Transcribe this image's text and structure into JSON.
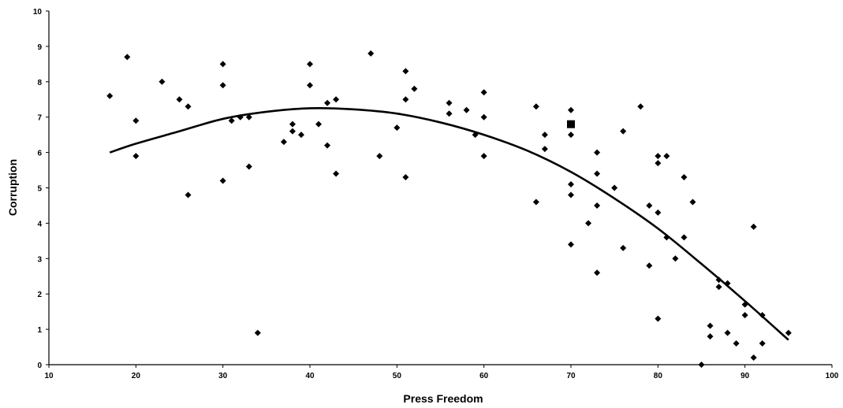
{
  "chart_data": {
    "type": "scatter",
    "title": "",
    "xlabel": "Press Freedom",
    "ylabel": "Corruption",
    "xlim": [
      10,
      100
    ],
    "ylim": [
      0,
      10
    ],
    "xticks": [
      10,
      20,
      30,
      40,
      50,
      60,
      70,
      80,
      90,
      100
    ],
    "yticks": [
      0,
      1,
      2,
      3,
      4,
      5,
      6,
      7,
      8,
      9,
      10
    ],
    "grid": false,
    "legend": "none",
    "colors": {
      "points": "#000000",
      "trend": "#000000",
      "axis": "#000000"
    },
    "series": [
      {
        "marker": "diamond",
        "points": [
          [
            17,
            7.6
          ],
          [
            19,
            8.7
          ],
          [
            20,
            6.9
          ],
          [
            20,
            5.9
          ],
          [
            23,
            8.0
          ],
          [
            25,
            7.5
          ],
          [
            26,
            7.3
          ],
          [
            26,
            4.8
          ],
          [
            30,
            8.5
          ],
          [
            30,
            7.9
          ],
          [
            30,
            5.2
          ],
          [
            31,
            6.9
          ],
          [
            32,
            7.0
          ],
          [
            33,
            7.0
          ],
          [
            33,
            5.6
          ],
          [
            34,
            0.9
          ],
          [
            37,
            6.3
          ],
          [
            38,
            6.8
          ],
          [
            38,
            6.6
          ],
          [
            39,
            6.5
          ],
          [
            40,
            8.5
          ],
          [
            40,
            7.9
          ],
          [
            41,
            6.8
          ],
          [
            42,
            7.4
          ],
          [
            42,
            6.2
          ],
          [
            43,
            7.5
          ],
          [
            43,
            5.4
          ],
          [
            47,
            8.8
          ],
          [
            48,
            5.9
          ],
          [
            50,
            6.7
          ],
          [
            51,
            8.3
          ],
          [
            51,
            7.5
          ],
          [
            51,
            5.3
          ],
          [
            52,
            7.8
          ],
          [
            56,
            7.4
          ],
          [
            56,
            7.1
          ],
          [
            58,
            7.2
          ],
          [
            59,
            6.5
          ],
          [
            60,
            7.7
          ],
          [
            60,
            7.0
          ],
          [
            60,
            5.9
          ],
          [
            66,
            7.3
          ],
          [
            66,
            4.6
          ],
          [
            67,
            6.5
          ],
          [
            67,
            6.1
          ],
          [
            70,
            7.2
          ],
          [
            70,
            6.5
          ],
          [
            70,
            5.1
          ],
          [
            70,
            4.8
          ],
          [
            70,
            3.4
          ],
          [
            72,
            4.0
          ],
          [
            73,
            6.0
          ],
          [
            73,
            5.4
          ],
          [
            73,
            4.5
          ],
          [
            73,
            2.6
          ],
          [
            75,
            5.0
          ],
          [
            76,
            6.6
          ],
          [
            76,
            3.3
          ],
          [
            78,
            7.3
          ],
          [
            79,
            4.5
          ],
          [
            79,
            2.8
          ],
          [
            80,
            5.9
          ],
          [
            80,
            5.7
          ],
          [
            80,
            4.3
          ],
          [
            80,
            1.3
          ],
          [
            81,
            5.9
          ],
          [
            81,
            3.6
          ],
          [
            82,
            3.0
          ],
          [
            83,
            5.3
          ],
          [
            83,
            3.6
          ],
          [
            84,
            4.6
          ],
          [
            85,
            0.0
          ],
          [
            86,
            1.1
          ],
          [
            86,
            0.8
          ],
          [
            87,
            2.4
          ],
          [
            87,
            2.2
          ],
          [
            88,
            2.3
          ],
          [
            88,
            0.9
          ],
          [
            89,
            0.6
          ],
          [
            90,
            1.7
          ],
          [
            90,
            1.4
          ],
          [
            91,
            3.9
          ],
          [
            91,
            0.2
          ],
          [
            92,
            1.4
          ],
          [
            92,
            0.6
          ],
          [
            95,
            0.9
          ]
        ]
      },
      {
        "marker": "square",
        "points": [
          [
            70,
            6.8
          ]
        ]
      }
    ],
    "trendline": {
      "type": "polynomial",
      "x_range": [
        17,
        95
      ],
      "points": [
        [
          17,
          6.0
        ],
        [
          20,
          6.25
        ],
        [
          25,
          6.6
        ],
        [
          30,
          6.95
        ],
        [
          35,
          7.15
        ],
        [
          40,
          7.25
        ],
        [
          45,
          7.22
        ],
        [
          50,
          7.1
        ],
        [
          55,
          6.85
        ],
        [
          60,
          6.5
        ],
        [
          65,
          6.05
        ],
        [
          70,
          5.45
        ],
        [
          75,
          4.7
        ],
        [
          80,
          3.85
        ],
        [
          85,
          2.85
        ],
        [
          90,
          1.8
        ],
        [
          95,
          0.7
        ]
      ]
    }
  }
}
